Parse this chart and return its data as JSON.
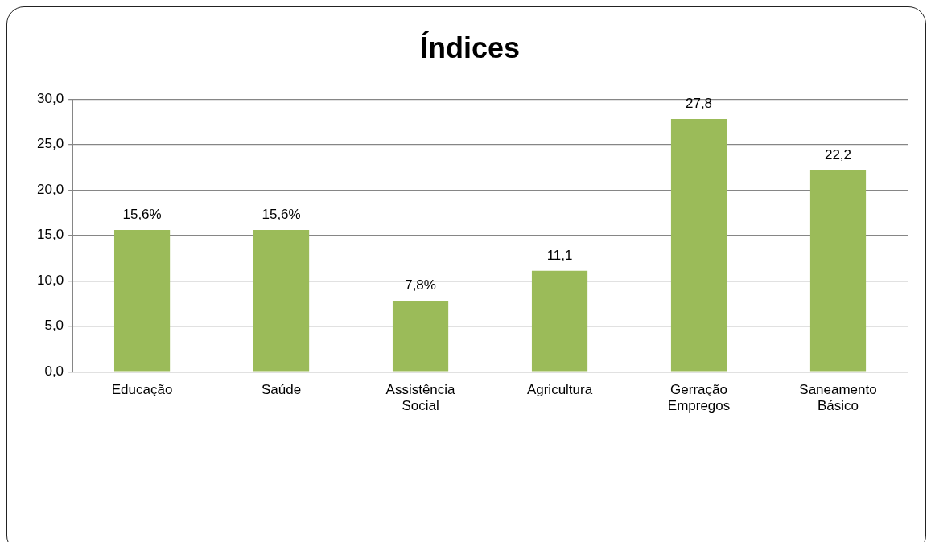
{
  "chart_data": {
    "type": "bar",
    "title": "Índices",
    "categories": [
      "Educação",
      "Saúde",
      "Assistência Social",
      "Agricultura",
      "Gerração Empregos",
      "Saneamento Básico"
    ],
    "values": [
      15.6,
      15.6,
      7.8,
      11.1,
      27.8,
      22.2
    ],
    "value_labels": [
      "15,6%",
      "15,6%",
      "7,8%",
      "11,1",
      "27,8",
      "22,2"
    ],
    "color": "#9bbb59",
    "ylim": [
      0,
      30
    ],
    "yticks": [
      {
        "value": 0,
        "label": "0,0"
      },
      {
        "value": 5,
        "label": "5,0"
      },
      {
        "value": 10,
        "label": "10,0"
      },
      {
        "value": 15,
        "label": "15,0"
      },
      {
        "value": 20,
        "label": "20,0"
      },
      {
        "value": 25,
        "label": "25,0"
      },
      {
        "value": 30,
        "label": "30,0"
      }
    ],
    "grid": "y"
  }
}
